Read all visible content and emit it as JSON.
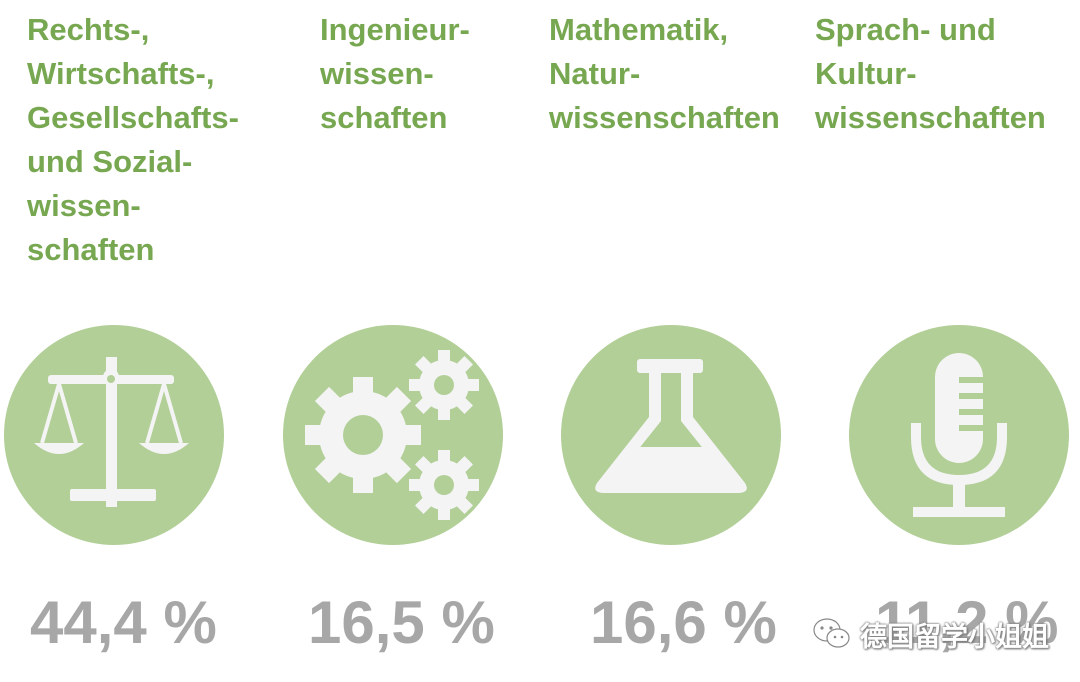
{
  "categories": [
    {
      "title": "Rechts-,\nWirtschafts-,\nGesellschafts-\nund Sozial-\nwissen-\nschaften",
      "icon": "scales-icon",
      "percent": "44,4 %"
    },
    {
      "title": "Ingenieur-\nwissen-\nschaften",
      "icon": "gears-icon",
      "percent": "16,5 %"
    },
    {
      "title": "Mathematik,\nNatur-\nwissenschaften",
      "icon": "flask-icon",
      "percent": "16,6 %"
    },
    {
      "title": "Sprach- und\nKultur-\nwissenschaften",
      "icon": "microphone-icon",
      "percent": "11,2 %"
    }
  ],
  "watermark": {
    "icon": "wechat-icon",
    "text": "德国留学小姐姐"
  },
  "colors": {
    "title": "#77a851",
    "circle": "#b1cf97",
    "icon": "#f4f4f4",
    "percent": "#a7a7a7"
  }
}
